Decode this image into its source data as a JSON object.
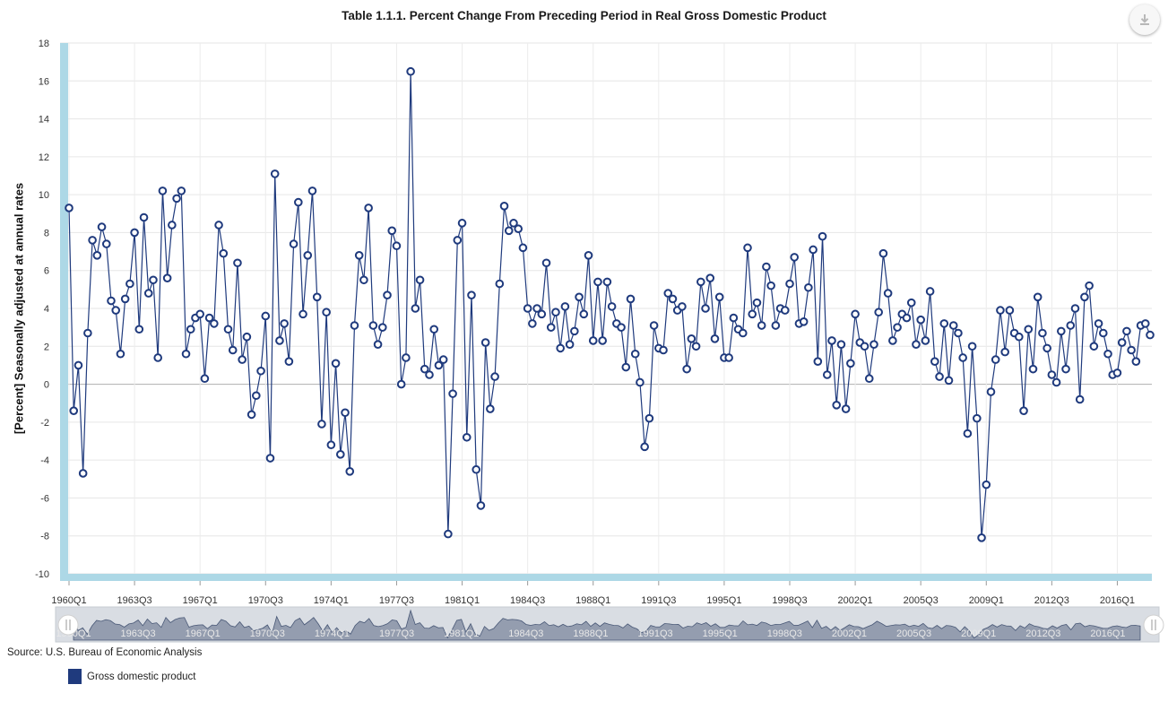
{
  "chart_data": {
    "type": "line",
    "title": "Table 1.1.1. Percent Change From Preceding Period in Real Gross Domestic Product",
    "ylabel": "[Percent] Seasonally adjusted at annual rates",
    "xlabel": "",
    "ylim": [
      -10,
      18
    ],
    "yticks": [
      -10,
      -8,
      -6,
      -4,
      -2,
      0,
      2,
      4,
      6,
      8,
      10,
      12,
      14,
      16,
      18
    ],
    "xstart": "1960Q1",
    "xticks": [
      "1960Q1",
      "1963Q3",
      "1967Q1",
      "1970Q3",
      "1974Q1",
      "1977Q3",
      "1981Q1",
      "1984Q3",
      "1988Q1",
      "1991Q3",
      "1995Q1",
      "1998Q3",
      "2002Q1",
      "2005Q3",
      "2009Q1",
      "2012Q3",
      "2016Q1"
    ],
    "grid": true,
    "legend_position": "bottom-left",
    "series": [
      {
        "name": "Gross domestic product",
        "color": "#1f3a7d",
        "values": [
          9.3,
          -1.4,
          1.0,
          -4.7,
          2.7,
          7.6,
          6.8,
          8.3,
          7.4,
          4.4,
          3.9,
          1.6,
          4.5,
          5.3,
          8.0,
          2.9,
          8.8,
          4.8,
          5.5,
          1.4,
          10.2,
          5.6,
          8.4,
          9.8,
          10.2,
          1.6,
          2.9,
          3.5,
          3.7,
          0.3,
          3.5,
          3.2,
          8.4,
          6.9,
          2.9,
          1.8,
          6.4,
          1.3,
          2.5,
          -1.6,
          -0.6,
          0.7,
          3.6,
          -3.9,
          11.1,
          2.3,
          3.2,
          1.2,
          7.4,
          9.6,
          3.7,
          6.8,
          10.2,
          4.6,
          -2.1,
          3.8,
          -3.2,
          1.1,
          -3.7,
          -1.5,
          -4.6,
          3.1,
          6.8,
          5.5,
          9.3,
          3.1,
          2.1,
          3.0,
          4.7,
          8.1,
          7.3,
          0.0,
          1.4,
          16.5,
          4.0,
          5.5,
          0.8,
          0.5,
          2.9,
          1.0,
          1.3,
          -7.9,
          -0.5,
          7.6,
          8.5,
          -2.8,
          4.7,
          -4.5,
          -6.4,
          2.2,
          -1.3,
          0.4,
          5.3,
          9.4,
          8.1,
          8.5,
          8.2,
          7.2,
          4.0,
          3.2,
          4.0,
          3.7,
          6.4,
          3.0,
          3.8,
          1.9,
          4.1,
          2.1,
          2.8,
          4.6,
          3.7,
          6.8,
          2.3,
          5.4,
          2.3,
          5.4,
          4.1,
          3.2,
          3.0,
          0.9,
          4.5,
          1.6,
          0.1,
          -3.3,
          -1.8,
          3.1,
          1.9,
          1.8,
          4.8,
          4.5,
          3.9,
          4.1,
          0.8,
          2.4,
          2.0,
          5.4,
          4.0,
          5.6,
          2.4,
          4.6,
          1.4,
          1.4,
          3.5,
          2.9,
          2.7,
          7.2,
          3.7,
          4.3,
          3.1,
          6.2,
          5.2,
          3.1,
          4.0,
          3.9,
          5.3,
          6.7,
          3.2,
          3.3,
          5.1,
          7.1,
          1.2,
          7.8,
          0.5,
          2.3,
          -1.1,
          2.1,
          -1.3,
          1.1,
          3.7,
          2.2,
          2.0,
          0.3,
          2.1,
          3.8,
          6.9,
          4.8,
          2.3,
          3.0,
          3.7,
          3.5,
          4.3,
          2.1,
          3.4,
          2.3,
          4.9,
          1.2,
          0.4,
          3.2,
          0.2,
          3.1,
          2.7,
          1.4,
          -2.6,
          2.0,
          -1.8,
          -8.1,
          -5.3,
          -0.4,
          1.3,
          3.9,
          1.7,
          3.9,
          2.7,
          2.5,
          -1.4,
          2.9,
          0.8,
          4.6,
          2.7,
          1.9,
          0.5,
          0.1,
          2.8,
          0.8,
          3.1,
          4.0,
          -0.8,
          4.6,
          5.2,
          2.0,
          3.2,
          2.7,
          1.6,
          0.5,
          0.6,
          2.2,
          2.8,
          1.8,
          1.2,
          3.1,
          3.2,
          2.6
        ]
      }
    ]
  },
  "source": "Source: U.S. Bureau of Economic Analysis",
  "legend": {
    "label": "Gross domestic product"
  },
  "navigator": {
    "label_color": "#e8e8e8"
  },
  "toolbar": {
    "download_icon": "download-icon"
  }
}
